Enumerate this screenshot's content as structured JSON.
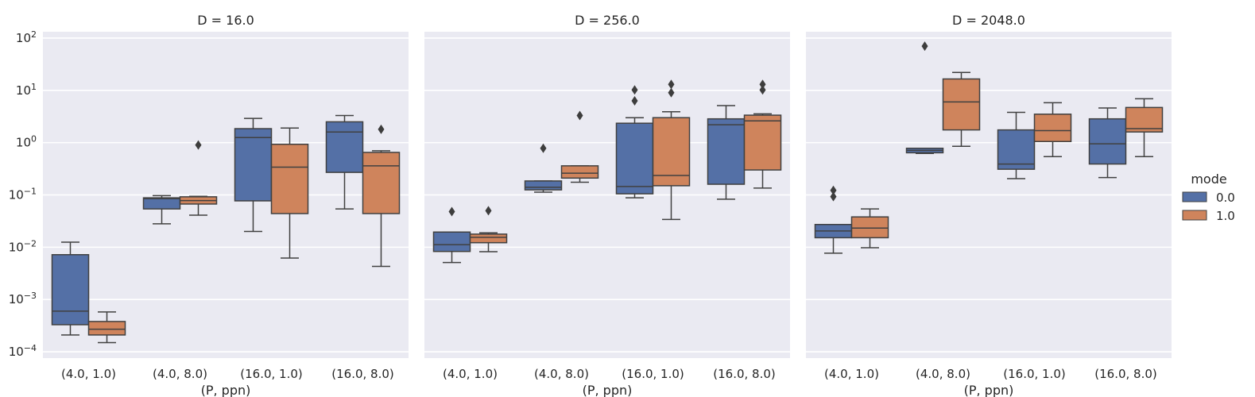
{
  "chart_data": {
    "type": "boxplot",
    "scale": "log",
    "ylim_log10": [
      -4.12,
      2.12
    ],
    "grid": true,
    "xlabel": "(P, ppn)",
    "categories": [
      "(4.0, 1.0)",
      "(4.0, 8.0)",
      "(16.0, 1.0)",
      "(16.0, 8.0)"
    ],
    "y_ticks": [
      {
        "base": "10",
        "exp": "2",
        "value": 100
      },
      {
        "base": "10",
        "exp": "1",
        "value": 10
      },
      {
        "base": "10",
        "exp": "0",
        "value": 1
      },
      {
        "base": "10",
        "exp": "−1",
        "value": 0.1
      },
      {
        "base": "10",
        "exp": "−2",
        "value": 0.01
      },
      {
        "base": "10",
        "exp": "−3",
        "value": 0.001
      },
      {
        "base": "10",
        "exp": "−4",
        "value": 0.0001
      }
    ],
    "legend": {
      "title": "mode",
      "position": "right",
      "entries": [
        {
          "label": "0.0",
          "color": "#5470a6"
        },
        {
          "label": "1.0",
          "color": "#cf845c"
        }
      ]
    },
    "panels": [
      {
        "title": "D = 16.0",
        "groups": [
          {
            "category": "(4.0, 1.0)",
            "boxes": [
              {
                "mode": "0.0",
                "whislo": 0.00021,
                "q1": 0.00033,
                "med": 0.0006,
                "q3": 0.0072,
                "whishi": 0.0125,
                "fliers": []
              },
              {
                "mode": "1.0",
                "whislo": 0.00015,
                "q1": 0.00021,
                "med": 0.00027,
                "q3": 0.00038,
                "whishi": 0.00058,
                "fliers": []
              }
            ]
          },
          {
            "category": "(4.0, 8.0)",
            "boxes": [
              {
                "mode": "0.0",
                "whislo": 0.028,
                "q1": 0.054,
                "med": 0.085,
                "q3": 0.088,
                "whishi": 0.097,
                "fliers": []
              },
              {
                "mode": "1.0",
                "whislo": 0.041,
                "q1": 0.067,
                "med": 0.078,
                "q3": 0.092,
                "whishi": 0.094,
                "fliers": [
                  0.9
                ]
              }
            ]
          },
          {
            "category": "(16.0, 1.0)",
            "boxes": [
              {
                "mode": "0.0",
                "whislo": 0.02,
                "q1": 0.077,
                "med": 1.25,
                "q3": 1.85,
                "whishi": 2.9,
                "fliers": []
              },
              {
                "mode": "1.0",
                "whislo": 0.0062,
                "q1": 0.044,
                "med": 0.34,
                "q3": 0.93,
                "whishi": 1.9,
                "fliers": []
              }
            ]
          },
          {
            "category": "(16.0, 8.0)",
            "boxes": [
              {
                "mode": "0.0",
                "whislo": 0.054,
                "q1": 0.27,
                "med": 1.6,
                "q3": 2.5,
                "whishi": 3.3,
                "fliers": []
              },
              {
                "mode": "1.0",
                "whislo": 0.0043,
                "q1": 0.044,
                "med": 0.36,
                "q3": 0.65,
                "whishi": 0.7,
                "fliers": [
                  1.8
                ]
              }
            ]
          }
        ]
      },
      {
        "title": "D = 256.0",
        "groups": [
          {
            "category": "(4.0, 1.0)",
            "boxes": [
              {
                "mode": "0.0",
                "whislo": 0.0051,
                "q1": 0.0083,
                "med": 0.0112,
                "q3": 0.0195,
                "whishi": 0.0195,
                "fliers": [
                  0.048
                ]
              },
              {
                "mode": "1.0",
                "whislo": 0.0082,
                "q1": 0.0122,
                "med": 0.0155,
                "q3": 0.0178,
                "whishi": 0.0188,
                "fliers": [
                  0.05
                ]
              }
            ]
          },
          {
            "category": "(4.0, 8.0)",
            "boxes": [
              {
                "mode": "0.0",
                "whislo": 0.113,
                "q1": 0.125,
                "med": 0.14,
                "q3": 0.185,
                "whishi": 0.185,
                "fliers": [
                  0.78
                ]
              },
              {
                "mode": "1.0",
                "whislo": 0.175,
                "q1": 0.21,
                "med": 0.26,
                "q3": 0.36,
                "whishi": 0.36,
                "fliers": [
                  3.3
                ]
              }
            ]
          },
          {
            "category": "(16.0, 1.0)",
            "boxes": [
              {
                "mode": "0.0",
                "whislo": 0.088,
                "q1": 0.105,
                "med": 0.145,
                "q3": 2.35,
                "whishi": 3.0,
                "fliers": [
                  6.3,
                  10.2
                ]
              },
              {
                "mode": "1.0",
                "whislo": 0.034,
                "q1": 0.15,
                "med": 0.235,
                "q3": 3.0,
                "whishi": 3.9,
                "fliers": [
                  9.0,
                  13.0
                ]
              }
            ]
          },
          {
            "category": "(16.0, 8.0)",
            "boxes": [
              {
                "mode": "0.0",
                "whislo": 0.083,
                "q1": 0.16,
                "med": 2.2,
                "q3": 2.85,
                "whishi": 5.1,
                "fliers": []
              },
              {
                "mode": "1.0",
                "whislo": 0.135,
                "q1": 0.3,
                "med": 2.6,
                "q3": 3.35,
                "whishi": 3.55,
                "fliers": [
                  10.2,
                  13.0
                ]
              }
            ]
          }
        ]
      },
      {
        "title": "D = 2048.0",
        "groups": [
          {
            "category": "(4.0, 1.0)",
            "boxes": [
              {
                "mode": "0.0",
                "whislo": 0.0077,
                "q1": 0.0152,
                "med": 0.0205,
                "q3": 0.0272,
                "whishi": 0.0272,
                "fliers": [
                  0.093,
                  0.122
                ]
              },
              {
                "mode": "1.0",
                "whislo": 0.0098,
                "q1": 0.0152,
                "med": 0.0232,
                "q3": 0.038,
                "whishi": 0.054,
                "fliers": []
              }
            ]
          },
          {
            "category": "(4.0, 8.0)",
            "boxes": [
              {
                "mode": "0.0",
                "whislo": 0.62,
                "q1": 0.64,
                "med": 0.71,
                "q3": 0.78,
                "whishi": 0.78,
                "fliers": [
                  70.0
                ]
              },
              {
                "mode": "1.0",
                "whislo": 0.85,
                "q1": 1.75,
                "med": 6.0,
                "q3": 16.5,
                "whishi": 22.0,
                "fliers": []
              }
            ]
          },
          {
            "category": "(16.0, 1.0)",
            "boxes": [
              {
                "mode": "0.0",
                "whislo": 0.205,
                "q1": 0.31,
                "med": 0.39,
                "q3": 1.75,
                "whishi": 3.8,
                "fliers": []
              },
              {
                "mode": "1.0",
                "whislo": 0.54,
                "q1": 1.05,
                "med": 1.7,
                "q3": 3.5,
                "whishi": 5.8,
                "fliers": []
              }
            ]
          },
          {
            "category": "(16.0, 8.0)",
            "boxes": [
              {
                "mode": "0.0",
                "whislo": 0.215,
                "q1": 0.39,
                "med": 0.95,
                "q3": 2.85,
                "whishi": 4.6,
                "fliers": []
              },
              {
                "mode": "1.0",
                "whislo": 0.54,
                "q1": 1.6,
                "med": 1.85,
                "q3": 4.7,
                "whishi": 6.9,
                "fliers": []
              }
            ]
          }
        ]
      }
    ]
  }
}
